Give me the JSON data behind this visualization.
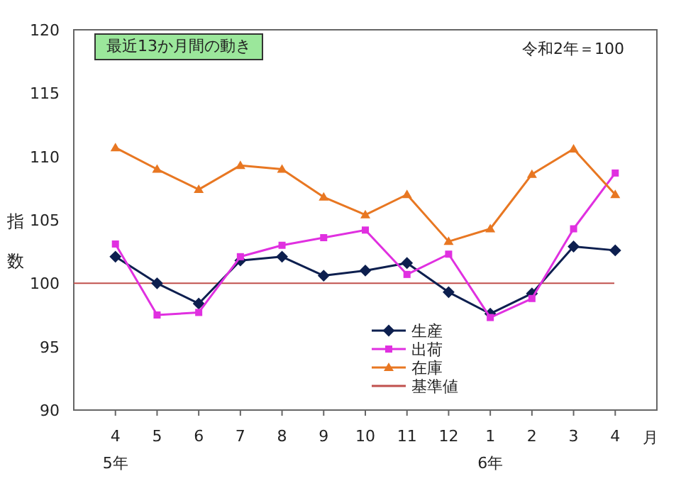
{
  "chart_data": {
    "type": "line",
    "title": "最近13か月間の動き",
    "subtitle": "令和2年＝100",
    "xlabel": "月",
    "ylabel": "指数",
    "categories": [
      "4\n5年",
      "5",
      "6",
      "7",
      "8",
      "9",
      "10",
      "11",
      "12",
      "1\n6年",
      "2",
      "3",
      "4"
    ],
    "series": [
      {
        "name": "生産",
        "color": "#0d1f4f",
        "marker": "diamond",
        "values": [
          102.1,
          100.0,
          98.4,
          101.8,
          102.1,
          100.6,
          101.0,
          101.6,
          99.3,
          97.6,
          99.2,
          102.9,
          102.6
        ]
      },
      {
        "name": "出荷",
        "color": "#e030e0",
        "marker": "square",
        "values": [
          103.1,
          97.5,
          97.7,
          102.1,
          103.0,
          103.6,
          104.2,
          100.7,
          102.3,
          97.3,
          98.8,
          104.3,
          108.7
        ]
      },
      {
        "name": "在庫",
        "color": "#e87722",
        "marker": "triangle",
        "values": [
          110.7,
          109.0,
          107.4,
          109.3,
          109.0,
          106.8,
          105.4,
          107.0,
          103.3,
          104.3,
          108.6,
          110.6,
          107.0
        ]
      }
    ],
    "ref_lines": [
      {
        "axis": "y",
        "value": 100,
        "label": "基準値",
        "color": "#c0504d",
        "line_style": "solid"
      }
    ],
    "ylim": [
      90,
      120
    ],
    "yticks": [
      90,
      95,
      100,
      105,
      110,
      115,
      120
    ],
    "grid": false,
    "legend": "bottom",
    "line_style": "solid"
  }
}
